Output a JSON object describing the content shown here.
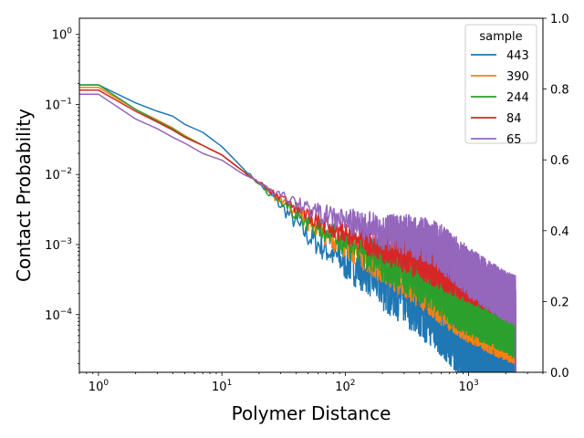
{
  "chart_data": {
    "type": "line",
    "title": "",
    "xlabel": "Polymer Distance",
    "ylabel": "Contact Probability",
    "x_scale": "log",
    "y_scale": "log",
    "xlim": [
      0.7,
      4000
    ],
    "ylim": [
      1.5e-05,
      1.7
    ],
    "x_ticks": [
      {
        "value": 1,
        "base": "10",
        "exp": "0"
      },
      {
        "value": 10,
        "base": "10",
        "exp": "1"
      },
      {
        "value": 100,
        "base": "10",
        "exp": "2"
      },
      {
        "value": 1000,
        "base": "10",
        "exp": "3"
      }
    ],
    "y_ticks": [
      {
        "value": 0.0001,
        "base": "10",
        "exp": "−4"
      },
      {
        "value": 0.001,
        "base": "10",
        "exp": "−3"
      },
      {
        "value": 0.01,
        "base": "10",
        "exp": "−2"
      },
      {
        "value": 0.1,
        "base": "10",
        "exp": "−1"
      },
      {
        "value": 1,
        "base": "10",
        "exp": "0"
      }
    ],
    "secondary_y": {
      "ylim": [
        0,
        1
      ],
      "ticks": [
        "0.0",
        "0.2",
        "0.4",
        "0.6",
        "0.8",
        "1.0"
      ]
    },
    "grid": false,
    "legend": {
      "title": "sample",
      "placement": "top-right"
    },
    "x": [
      1,
      2,
      3,
      4,
      5,
      7,
      10,
      15,
      20,
      30,
      50,
      70,
      100,
      150,
      200,
      300,
      500,
      700,
      1000,
      1500,
      2000,
      2400
    ],
    "series": [
      {
        "name": "443",
        "color": "#1f77b4",
        "start": 0.19,
        "values": [
          0.19,
          0.105,
          0.08,
          0.068,
          0.052,
          0.04,
          0.025,
          0.012,
          0.0075,
          0.0036,
          0.0013,
          0.00085,
          0.00055,
          0.0004,
          0.00025,
          0.00018,
          0.0001,
          6e-05,
          3e-05,
          2e-05,
          2e-05,
          1.6e-05
        ],
        "noise": 0.55
      },
      {
        "name": "390",
        "color": "#ff7f0e",
        "start": 0.175,
        "values": [
          0.175,
          0.085,
          0.06,
          0.046,
          0.036,
          0.026,
          0.019,
          0.011,
          0.0075,
          0.0042,
          0.0021,
          0.0014,
          0.001,
          0.00068,
          0.00052,
          0.00038,
          0.00022,
          0.00015,
          0.0001,
          7e-05,
          5.5e-05,
          5e-05
        ],
        "noise": 0.45
      },
      {
        "name": "244",
        "color": "#2ca02c",
        "start": 0.19,
        "values": [
          0.19,
          0.085,
          0.058,
          0.045,
          0.035,
          0.026,
          0.019,
          0.011,
          0.0072,
          0.0041,
          0.0021,
          0.0015,
          0.0011,
          0.00075,
          0.00058,
          0.00042,
          0.00026,
          0.00018,
          0.00012,
          9e-05,
          7e-05,
          6e-05
        ],
        "noise": 0.45
      },
      {
        "name": "84",
        "color": "#d62728",
        "start": 0.16,
        "values": [
          0.16,
          0.08,
          0.056,
          0.043,
          0.034,
          0.026,
          0.019,
          0.011,
          0.0077,
          0.0046,
          0.0026,
          0.0019,
          0.0014,
          0.0011,
          0.0009,
          0.00072,
          0.00052,
          0.0004,
          0.0003,
          0.00022,
          0.00017,
          0.00015
        ],
        "noise": 0.35
      },
      {
        "name": "65",
        "color": "#9467bd",
        "start": 0.14,
        "values": [
          0.14,
          0.062,
          0.045,
          0.034,
          0.028,
          0.02,
          0.016,
          0.01,
          0.0078,
          0.005,
          0.0033,
          0.0026,
          0.0022,
          0.0018,
          0.0015,
          0.0014,
          0.0011,
          0.0007,
          0.0004,
          0.00025,
          0.00018,
          0.00016
        ],
        "noise": 0.4
      }
    ]
  }
}
